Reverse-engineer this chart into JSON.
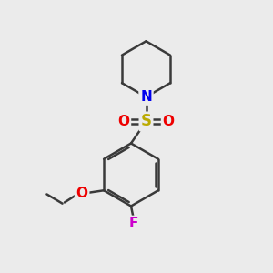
{
  "background_color": "#ebebeb",
  "bond_color": "#3a3a3a",
  "bond_width": 1.8,
  "N_color": "#0000ee",
  "O_color": "#ee0000",
  "S_color": "#bbaa00",
  "F_color": "#cc00cc",
  "figsize": [
    3.0,
    3.0
  ],
  "dpi": 100,
  "xlim": [
    0,
    10
  ],
  "ylim": [
    0,
    10
  ],
  "label_fontsize": 11,
  "label_fontsize_small": 10
}
